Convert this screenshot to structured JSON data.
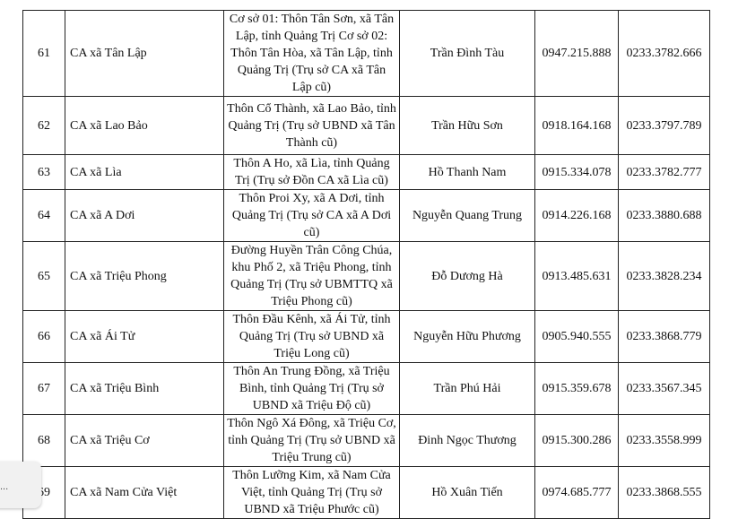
{
  "rows": [
    {
      "stt": "61",
      "unit": "CA xã Tân Lập",
      "address": "Cơ sở 01: Thôn Tân Sơn, xã Tân Lập, tỉnh Quảng Trị Cơ sở 02: Thôn Tân Hòa, xã Tân Lập, tỉnh Quảng Trị (Trụ sở CA xã Tân Lập cũ)",
      "name": "Trần Đình Tàu",
      "mobile": "0947.215.888",
      "landline": "0233.3782.666"
    },
    {
      "stt": "62",
      "unit": "CA xã Lao Bảo",
      "address": "Thôn Cổ Thành, xã Lao Bảo, tỉnh Quảng Trị (Trụ sở UBND xã Tân Thành cũ)",
      "name": "Trần Hữu Sơn",
      "mobile": "0918.164.168",
      "landline": "0233.3797.789"
    },
    {
      "stt": "63",
      "unit": "CA xã Lìa",
      "address": "Thôn A Ho, xã Lìa, tỉnh Quảng Trị (Trụ sở Đồn CA xã Lìa cũ)",
      "name": "Hồ Thanh Nam",
      "mobile": "0915.334.078",
      "landline": "0233.3782.777"
    },
    {
      "stt": "64",
      "unit": "CA xã A Dơi",
      "address": "Thôn Proi Xy, xã A Dơi, tỉnh Quảng Trị (Trụ sở CA xã A Dơi cũ)",
      "name": "Nguyễn Quang Trung",
      "mobile": "0914.226.168",
      "landline": "0233.3880.688"
    },
    {
      "stt": "65",
      "unit": "CA xã Triệu Phong",
      "address": "Đường Huyền Trân Công Chúa, khu Phố 2, xã Triệu Phong, tỉnh Quảng Trị (Trụ sở UBMTTQ xã Triệu Phong cũ)",
      "name": "Đỗ Dương Hà",
      "mobile": "0913.485.631",
      "landline": "0233.3828.234"
    },
    {
      "stt": "66",
      "unit": "CA xã Ái Tử",
      "address": "Thôn Đầu Kênh, xã Ái Tử, tỉnh Quảng Trị (Trụ sở UBND xã Triệu Long cũ)",
      "name": "Nguyễn Hữu Phương",
      "mobile": "0905.940.555",
      "landline": "0233.3868.779"
    },
    {
      "stt": "67",
      "unit": "CA xã Triệu Bình",
      "address": "Thôn An Trung Đồng, xã Triệu Bình, tỉnh Quảng Trị (Trụ sở UBND xã Triệu Độ cũ)",
      "name": "Trần Phú Hải",
      "mobile": "0915.359.678",
      "landline": "0233.3567.345"
    },
    {
      "stt": "68",
      "unit": "CA xã Triệu Cơ",
      "address": "Thôn Ngô Xá Đông, xã Triệu Cơ, tỉnh Quảng Trị (Trụ sở UBND xã Triệu Trung cũ)",
      "name": "Đinh Ngọc Thương",
      "mobile": "0915.300.286",
      "landline": "0233.3558.999"
    },
    {
      "stt": "69",
      "unit": "CA xã Nam Cửa Việt",
      "address": "Thôn Lưỡng Kim, xã Nam Cửa Việt, tỉnh Quảng Trị (Trụ sở UBND xã Triệu Phước cũ)",
      "name": "Hồ Xuân Tiến",
      "mobile": "0974.685.777",
      "landline": "0233.3868.555"
    }
  ],
  "popup": {
    "label": "..."
  }
}
